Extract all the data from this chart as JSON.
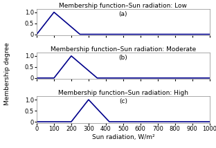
{
  "subplots": [
    {
      "title": "Membership function–Sun radiation: Low",
      "label": "(a)",
      "triangle": [
        0,
        100,
        250
      ],
      "color": "#00008B"
    },
    {
      "title": "Membership function–Sun radiation: Moderate",
      "label": "(b)",
      "triangle": [
        100,
        200,
        350
      ],
      "color": "#00008B"
    },
    {
      "title": "Membership function–Sun radiation: High",
      "label": "(c)",
      "triangle": [
        200,
        300,
        420
      ],
      "color": "#00008B"
    }
  ],
  "xlim": [
    0,
    1000
  ],
  "ylim": [
    -0.05,
    1.15
  ],
  "xticks": [
    0,
    100,
    200,
    300,
    400,
    500,
    600,
    700,
    800,
    900,
    1000
  ],
  "yticks": [
    0,
    0.5,
    1.0
  ],
  "xlabel": "Sun radiation, W/m²",
  "ylabel": "Membership degree",
  "background_color": "#ffffff",
  "line_width": 1.2,
  "title_fontsize": 6.5,
  "label_fontsize": 6.5,
  "tick_fontsize": 6.0
}
